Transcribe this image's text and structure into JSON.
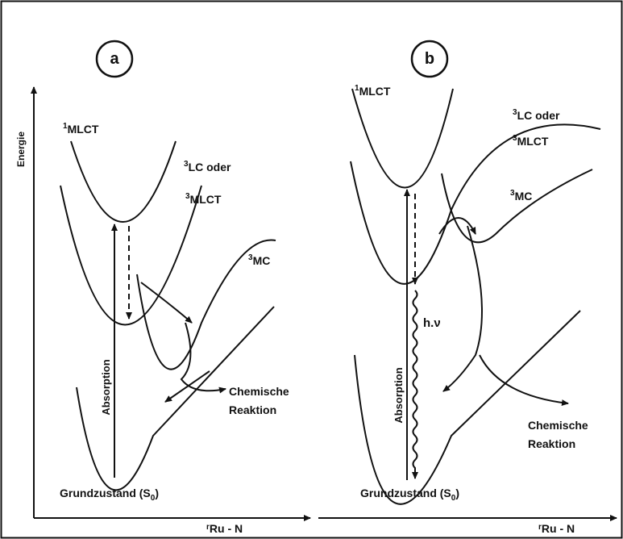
{
  "panels": [
    {
      "id": "a",
      "axis_label": "Energie",
      "states": [
        {
          "sup": "1",
          "text": "MLCT"
        },
        {
          "sup": "3",
          "text": "LC oder"
        },
        {
          "sup": "3",
          "text": "MLCT"
        },
        {
          "sup": "3",
          "text": "MC"
        }
      ],
      "absorption": "Absorption",
      "reaction": [
        "Chemische",
        "Reaktion"
      ],
      "ground": {
        "text": "Grundzustand (S",
        "sub": "0",
        "end": ")"
      },
      "coordinate": {
        "r": "r",
        "sub": "Ru - N"
      }
    },
    {
      "id": "b",
      "states": [
        {
          "sup": "1",
          "text": "MLCT"
        },
        {
          "sup": "3",
          "text": "LC oder"
        },
        {
          "sup": "3",
          "text": "MLCT"
        },
        {
          "sup": "3",
          "text": "MC"
        }
      ],
      "absorption": "Absorption",
      "emission": "h.ν",
      "reaction": [
        "Chemische",
        "Reaktion"
      ],
      "ground": {
        "text": "Grundzustand (S",
        "sub": "0",
        "end": ")"
      },
      "coordinate": {
        "r": "r",
        "sub": "Ru - N"
      }
    }
  ]
}
